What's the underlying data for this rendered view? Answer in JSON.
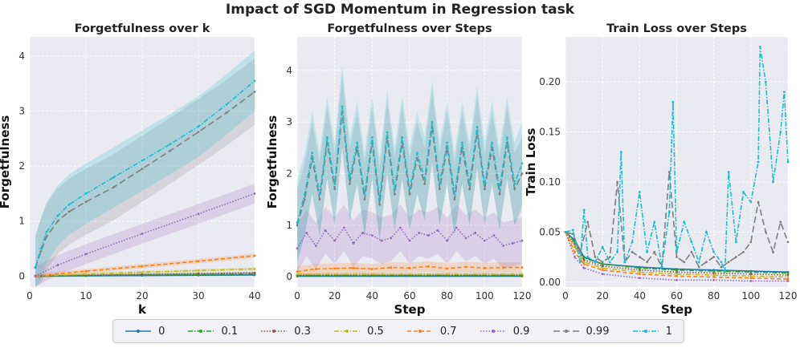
{
  "figure": {
    "title": "Impact of SGD Momentum in Regression task",
    "colors": {
      "0": "#1f77b4",
      "0.1": "#2ca02c",
      "0.3": "#8c564b",
      "0.5": "#bcbd22",
      "0.7": "#ff7f0e",
      "0.9": "#9467bd",
      "0.99": "#7f7f7f",
      "1": "#17becf"
    },
    "legend": {
      "entries": [
        {
          "label": "0",
          "key": "0",
          "dash": "solid",
          "marker": "dot"
        },
        {
          "label": "0.1",
          "key": "0.1",
          "dash": "dashdot",
          "marker": "dot"
        },
        {
          "label": "0.3",
          "key": "0.3",
          "dash": "dotted",
          "marker": "dot"
        },
        {
          "label": "0.5",
          "key": "0.5",
          "dash": "dashdot",
          "marker": "dot"
        },
        {
          "label": "0.7",
          "key": "0.7",
          "dash": "dashed",
          "marker": "dot"
        },
        {
          "label": "0.9",
          "key": "0.9",
          "dash": "dotted",
          "marker": "dot"
        },
        {
          "label": "0.99",
          "key": "0.99",
          "dash": "longdash",
          "marker": "dot"
        },
        {
          "label": "1",
          "key": "1",
          "dash": "dashdot",
          "marker": "dot"
        }
      ]
    }
  },
  "chart_data": [
    {
      "type": "line",
      "title": "Forgetfulness over k",
      "xlabel": "k",
      "ylabel": "Forgetfulness",
      "xlim": [
        0,
        40
      ],
      "ylim": [
        -0.2,
        4.35
      ],
      "xticks": [
        0,
        10,
        20,
        30,
        40
      ],
      "yticks": [
        0,
        1,
        2,
        3,
        4
      ],
      "series": [
        {
          "name": "0",
          "x": [
            1,
            10,
            20,
            30,
            40
          ],
          "y": [
            0.0,
            0.005,
            0.01,
            0.015,
            0.02
          ],
          "band": 0.02
        },
        {
          "name": "0.1",
          "x": [
            1,
            10,
            20,
            30,
            40
          ],
          "y": [
            0.0,
            0.01,
            0.02,
            0.03,
            0.04
          ],
          "band": 0.02
        },
        {
          "name": "0.3",
          "x": [
            1,
            10,
            20,
            30,
            40
          ],
          "y": [
            0.0,
            0.015,
            0.03,
            0.045,
            0.06
          ],
          "band": 0.02
        },
        {
          "name": "0.5",
          "x": [
            1,
            10,
            20,
            30,
            40
          ],
          "y": [
            0.0,
            0.035,
            0.07,
            0.1,
            0.13
          ],
          "band": 0.03
        },
        {
          "name": "0.7",
          "x": [
            1,
            10,
            20,
            30,
            40
          ],
          "y": [
            0.0,
            0.09,
            0.18,
            0.27,
            0.37
          ],
          "band": 0.04
        },
        {
          "name": "0.9",
          "x": [
            1,
            5,
            10,
            20,
            30,
            40
          ],
          "y": [
            0.0,
            0.2,
            0.4,
            0.77,
            1.13,
            1.5
          ],
          "band": 0.18
        },
        {
          "name": "0.99",
          "x": [
            1,
            2,
            3,
            5,
            7,
            10,
            15,
            20,
            25,
            30,
            35,
            40
          ],
          "y": [
            0.15,
            0.45,
            0.72,
            1.0,
            1.17,
            1.35,
            1.62,
            1.95,
            2.28,
            2.62,
            2.97,
            3.35
          ],
          "band": 0.6
        },
        {
          "name": "1",
          "x": [
            1,
            2,
            3,
            5,
            7,
            10,
            15,
            20,
            25,
            30,
            35,
            40
          ],
          "y": [
            0.16,
            0.5,
            0.8,
            1.1,
            1.3,
            1.5,
            1.8,
            2.1,
            2.4,
            2.72,
            3.12,
            3.55
          ],
          "band": 0.55
        }
      ]
    },
    {
      "type": "line",
      "title": "Forgetfulness over Steps",
      "xlabel": "Step",
      "ylabel": "Forgetfulness",
      "xlim": [
        0,
        120
      ],
      "ylim": [
        -0.2,
        4.65
      ],
      "xticks": [
        0,
        20,
        40,
        60,
        80,
        100,
        120
      ],
      "yticks": [
        0,
        1,
        2,
        3,
        4
      ],
      "series": [
        {
          "name": "0",
          "x": [
            0,
            120
          ],
          "y": [
            0.01,
            0.01
          ],
          "band": 0.02
        },
        {
          "name": "0.1",
          "x": [
            0,
            120
          ],
          "y": [
            0.02,
            0.02
          ],
          "band": 0.02
        },
        {
          "name": "0.3",
          "x": [
            0,
            120
          ],
          "y": [
            0.03,
            0.03
          ],
          "band": 0.02
        },
        {
          "name": "0.5",
          "x": [
            0,
            120
          ],
          "y": [
            0.05,
            0.05
          ],
          "band": 0.03
        },
        {
          "name": "0.7",
          "x": [
            0,
            10,
            20,
            30,
            40,
            50,
            60,
            70,
            80,
            90,
            100,
            110,
            120
          ],
          "y": [
            0.1,
            0.15,
            0.16,
            0.17,
            0.15,
            0.18,
            0.17,
            0.2,
            0.16,
            0.19,
            0.17,
            0.18,
            0.18
          ],
          "band": 0.1
        },
        {
          "name": "0.9",
          "x": [
            0,
            5,
            10,
            15,
            20,
            25,
            30,
            35,
            40,
            45,
            50,
            55,
            60,
            65,
            70,
            75,
            80,
            85,
            90,
            95,
            100,
            105,
            110,
            115,
            120
          ],
          "y": [
            0.55,
            0.85,
            0.6,
            0.9,
            0.7,
            0.95,
            0.65,
            0.85,
            0.8,
            0.7,
            0.75,
            0.95,
            0.7,
            0.85,
            0.8,
            0.9,
            0.7,
            0.95,
            0.75,
            0.85,
            0.7,
            0.8,
            0.6,
            0.65,
            0.7
          ],
          "band": 0.45
        },
        {
          "name": "0.99",
          "x": [
            0,
            4,
            8,
            12,
            16,
            20,
            24,
            28,
            32,
            36,
            40,
            44,
            48,
            52,
            56,
            60,
            64,
            68,
            72,
            76,
            80,
            84,
            88,
            92,
            96,
            100,
            104,
            108,
            112,
            116,
            120
          ],
          "y": [
            1.0,
            1.5,
            2.3,
            1.5,
            2.6,
            1.7,
            3.2,
            1.8,
            2.5,
            1.5,
            2.6,
            1.4,
            2.7,
            1.6,
            2.6,
            1.6,
            2.3,
            1.8,
            2.9,
            1.7,
            2.5,
            1.5,
            2.5,
            1.7,
            2.8,
            1.7,
            2.5,
            1.6,
            2.6,
            1.7,
            2.0
          ],
          "band": 0.7
        },
        {
          "name": "1",
          "x": [
            0,
            4,
            8,
            12,
            16,
            20,
            24,
            28,
            32,
            36,
            40,
            44,
            48,
            52,
            56,
            60,
            64,
            68,
            72,
            76,
            80,
            84,
            88,
            92,
            96,
            100,
            104,
            108,
            112,
            116,
            120
          ],
          "y": [
            1.05,
            1.6,
            2.4,
            1.6,
            2.7,
            1.8,
            3.3,
            1.9,
            2.6,
            1.6,
            2.7,
            1.5,
            2.8,
            1.7,
            2.7,
            1.7,
            2.4,
            1.9,
            3.0,
            1.8,
            2.6,
            1.6,
            2.6,
            1.8,
            2.9,
            1.8,
            2.6,
            1.7,
            2.7,
            1.8,
            2.2
          ],
          "band": 0.8
        }
      ]
    },
    {
      "type": "line",
      "title": "Train Loss over Steps",
      "xlabel": "Step",
      "ylabel": "Train Loss",
      "xlim": [
        0,
        120
      ],
      "ylim": [
        -0.005,
        0.245
      ],
      "xticks": [
        0,
        20,
        40,
        60,
        80,
        100,
        120
      ],
      "yticks": [
        0.0,
        0.05,
        0.1,
        0.15,
        0.2
      ],
      "ytick_labels": [
        "0.00",
        "0.05",
        "0.10",
        "0.15",
        "0.20"
      ],
      "series": [
        {
          "name": "0",
          "x": [
            0,
            5,
            10,
            20,
            40,
            60,
            80,
            100,
            120
          ],
          "y": [
            0.05,
            0.042,
            0.025,
            0.018,
            0.015,
            0.013,
            0.012,
            0.011,
            0.01
          ]
        },
        {
          "name": "0.1",
          "x": [
            0,
            5,
            10,
            20,
            40,
            60,
            80,
            100,
            120
          ],
          "y": [
            0.05,
            0.04,
            0.024,
            0.018,
            0.014,
            0.012,
            0.011,
            0.01,
            0.009
          ]
        },
        {
          "name": "0.3",
          "x": [
            0,
            5,
            10,
            20,
            40,
            60,
            80,
            100,
            120
          ],
          "y": [
            0.05,
            0.038,
            0.022,
            0.016,
            0.012,
            0.01,
            0.009,
            0.008,
            0.007
          ]
        },
        {
          "name": "0.5",
          "x": [
            0,
            5,
            10,
            20,
            40,
            60,
            80,
            100,
            120
          ],
          "y": [
            0.05,
            0.035,
            0.02,
            0.014,
            0.01,
            0.008,
            0.007,
            0.006,
            0.005
          ]
        },
        {
          "name": "0.7",
          "x": [
            0,
            5,
            10,
            20,
            40,
            60,
            80,
            100,
            120
          ],
          "y": [
            0.05,
            0.03,
            0.018,
            0.012,
            0.008,
            0.006,
            0.005,
            0.004,
            0.003
          ]
        },
        {
          "name": "0.9",
          "x": [
            0,
            5,
            10,
            20,
            40,
            60,
            80,
            100,
            120
          ],
          "y": [
            0.05,
            0.025,
            0.014,
            0.008,
            0.004,
            0.002,
            0.002,
            0.001,
            0.001
          ]
        },
        {
          "name": "0.99",
          "x": [
            0,
            4,
            8,
            12,
            16,
            20,
            24,
            28,
            32,
            36,
            40,
            44,
            48,
            52,
            56,
            60,
            64,
            68,
            72,
            76,
            80,
            84,
            88,
            92,
            96,
            100,
            104,
            108,
            112,
            116,
            120
          ],
          "y": [
            0.05,
            0.048,
            0.03,
            0.06,
            0.025,
            0.02,
            0.025,
            0.1,
            0.02,
            0.03,
            0.025,
            0.02,
            0.03,
            0.015,
            0.11,
            0.025,
            0.02,
            0.03,
            0.015,
            0.02,
            0.025,
            0.015,
            0.02,
            0.025,
            0.03,
            0.04,
            0.08,
            0.05,
            0.03,
            0.06,
            0.04
          ]
        },
        {
          "name": "1",
          "x": [
            0,
            4,
            8,
            10,
            12,
            16,
            20,
            24,
            28,
            30,
            32,
            36,
            40,
            44,
            48,
            52,
            56,
            58,
            60,
            64,
            68,
            72,
            76,
            80,
            84,
            86,
            88,
            92,
            96,
            100,
            104,
            105,
            108,
            112,
            116,
            118,
            120
          ],
          "y": [
            0.05,
            0.052,
            0.02,
            0.072,
            0.025,
            0.02,
            0.035,
            0.02,
            0.03,
            0.13,
            0.02,
            0.04,
            0.09,
            0.03,
            0.06,
            0.015,
            0.07,
            0.18,
            0.03,
            0.06,
            0.04,
            0.02,
            0.05,
            0.03,
            0.02,
            0.01,
            0.11,
            0.04,
            0.09,
            0.08,
            0.12,
            0.235,
            0.2,
            0.1,
            0.15,
            0.19,
            0.12
          ]
        }
      ]
    }
  ]
}
